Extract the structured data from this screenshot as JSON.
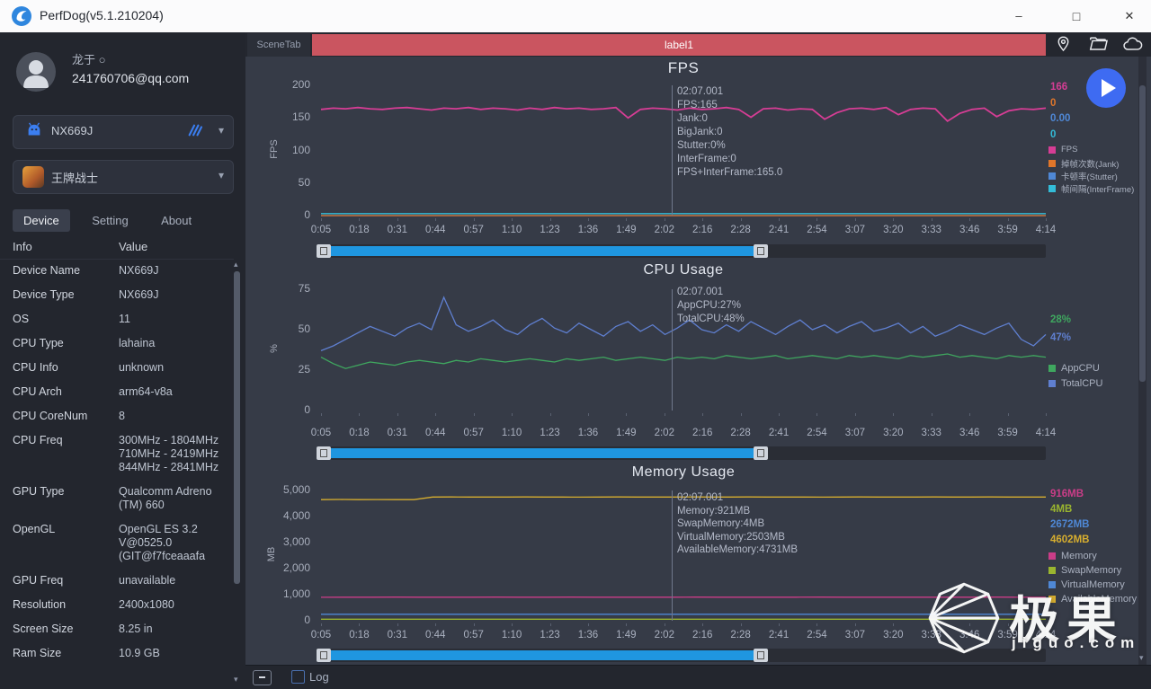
{
  "window": {
    "title": "PerfDog(v5.1.210204)"
  },
  "icons": {
    "minimize": "–",
    "maximize": "□",
    "close": "✕",
    "caret_down": "▾",
    "scroll_up": "▴",
    "scroll_down": "▾"
  },
  "sidebar": {
    "user": {
      "name": "龙于 ○",
      "email": "241760706@qq.com"
    },
    "device_select": {
      "value": "NX669J"
    },
    "app_select": {
      "value": "王牌战士"
    },
    "tabs": [
      {
        "label": "Device",
        "active": true
      },
      {
        "label": "Setting",
        "active": false
      },
      {
        "label": "About",
        "active": false
      }
    ],
    "table": {
      "headers": [
        "Info",
        "Value"
      ],
      "rows": [
        [
          "Device Name",
          "NX669J"
        ],
        [
          "Device Type",
          "NX669J"
        ],
        [
          "OS",
          "11"
        ],
        [
          "CPU Type",
          "lahaina"
        ],
        [
          "CPU Info",
          "unknown"
        ],
        [
          "CPU Arch",
          "arm64-v8a"
        ],
        [
          "CPU CoreNum",
          "8"
        ],
        [
          "CPU Freq",
          "300MHz - 1804MHz\n710MHz - 2419MHz\n844MHz - 2841MHz"
        ],
        [
          "GPU Type",
          "Qualcomm Adreno (TM) 660"
        ],
        [
          "OpenGL",
          "OpenGL ES 3.2 V@0525.0 (GIT@f7fceaaafa"
        ],
        [
          "GPU Freq",
          "unavailable"
        ],
        [
          "Resolution",
          "2400x1080"
        ],
        [
          "Screen Size",
          "8.25 in"
        ],
        [
          "Ram Size",
          "10.9 GB"
        ]
      ]
    }
  },
  "main": {
    "scene_tab": "SceneTab",
    "banner_label": "label1",
    "log_label": "Log"
  },
  "watermark": {
    "logo_text": "极果",
    "site": "jiguo.com"
  },
  "chart_data": [
    {
      "type": "line",
      "title": "FPS",
      "ylabel": "FPS",
      "ylim": [
        0,
        200
      ],
      "yticks": [
        "0",
        "50",
        "100",
        "150",
        "200"
      ],
      "x_ticks": [
        "0:05",
        "0:18",
        "0:31",
        "0:44",
        "0:57",
        "1:10",
        "1:23",
        "1:36",
        "1:49",
        "2:02",
        "2:16",
        "2:28",
        "2:41",
        "2:54",
        "3:07",
        "3:20",
        "3:33",
        "3:46",
        "3:59",
        "4:14"
      ],
      "grid": false,
      "legend_position": "right",
      "tooltip": [
        "02:07.001",
        "FPS:165",
        "Jank:0",
        "BigJank:0",
        "Stutter:0%",
        "InterFrame:0",
        "FPS+InterFrame:165.0"
      ],
      "series": [
        {
          "name": "FPS",
          "color": "#d63d95",
          "current": "166",
          "values": [
            163,
            165,
            164,
            166,
            164,
            163,
            165,
            166,
            164,
            162,
            165,
            164,
            166,
            163,
            165,
            164,
            162,
            165,
            163,
            166,
            164,
            165,
            163,
            164,
            166,
            150,
            163,
            165,
            164,
            162,
            165,
            163,
            164,
            166,
            163,
            151,
            164,
            165,
            162,
            164,
            163,
            148,
            158,
            164,
            165,
            163,
            166,
            155,
            163,
            165,
            164,
            145,
            157,
            163,
            165,
            152,
            161,
            164,
            163,
            165
          ]
        },
        {
          "name": "掉帧次数(Jank)",
          "color": "#e0762a",
          "current": "0",
          "values": [
            0,
            0
          ]
        },
        {
          "name": "卡顿率(Stutter)",
          "color": "#4f88d6",
          "current": "0.00",
          "values": [
            0,
            0
          ]
        },
        {
          "name": "帧间隔(InterFrame)",
          "color": "#33bcd8",
          "current": "0",
          "values": [
            3,
            3
          ]
        }
      ]
    },
    {
      "type": "line",
      "title": "CPU Usage",
      "ylabel": "%",
      "ylim": [
        0,
        75
      ],
      "yticks": [
        "0",
        "25",
        "50",
        "75"
      ],
      "x_ticks": [
        "0:05",
        "0:18",
        "0:31",
        "0:44",
        "0:57",
        "1:10",
        "1:23",
        "1:36",
        "1:49",
        "2:02",
        "2:16",
        "2:28",
        "2:41",
        "2:54",
        "3:07",
        "3:20",
        "3:33",
        "3:46",
        "3:59",
        "4:14"
      ],
      "grid": false,
      "legend_position": "right",
      "tooltip": [
        "02:07.001",
        "AppCPU:27%",
        "TotalCPU:48%"
      ],
      "series": [
        {
          "name": "AppCPU",
          "color": "#3fa75f",
          "current": "28%",
          "values": [
            33,
            29,
            26,
            28,
            30,
            29,
            28,
            30,
            31,
            30,
            29,
            31,
            30,
            32,
            31,
            30,
            31,
            32,
            31,
            30,
            32,
            31,
            32,
            33,
            31,
            32,
            33,
            32,
            31,
            33,
            32,
            33,
            32,
            34,
            33,
            32,
            33,
            34,
            32,
            33,
            34,
            33,
            32,
            34,
            33,
            34,
            33,
            32,
            34,
            33,
            34,
            35,
            33,
            34,
            33,
            32,
            34,
            33,
            34,
            33
          ]
        },
        {
          "name": "TotalCPU",
          "color": "#5f7fd0",
          "current": "47%",
          "values": [
            37,
            40,
            44,
            48,
            52,
            49,
            46,
            51,
            54,
            50,
            70,
            53,
            49,
            52,
            56,
            50,
            47,
            53,
            57,
            51,
            48,
            54,
            50,
            46,
            52,
            55,
            49,
            53,
            47,
            51,
            56,
            50,
            48,
            53,
            49,
            55,
            51,
            47,
            52,
            56,
            50,
            53,
            48,
            52,
            55,
            49,
            51,
            54,
            48,
            52,
            46,
            49,
            53,
            50,
            47,
            51,
            54,
            44,
            40,
            47
          ]
        }
      ]
    },
    {
      "type": "line",
      "title": "Memory Usage",
      "ylabel": "MB",
      "ylim": [
        0,
        5000
      ],
      "yticks": [
        "0",
        "1,000",
        "2,000",
        "3,000",
        "4,000",
        "5,000"
      ],
      "x_ticks": [
        "0:05",
        "0:18",
        "0:31",
        "0:44",
        "0:57",
        "1:10",
        "1:23",
        "1:36",
        "1:49",
        "2:02",
        "2:16",
        "2:28",
        "2:41",
        "2:54",
        "3:07",
        "3:20",
        "3:33",
        "3:46",
        "3:59",
        "4:14"
      ],
      "grid": false,
      "legend_position": "right",
      "tooltip": [
        "02:07.001",
        "Memory:921MB",
        "SwapMemory:4MB",
        "VirtualMemory:2503MB",
        "AvailableMemory:4731MB"
      ],
      "series": [
        {
          "name": "Memory",
          "color": "#cb3d88",
          "current": "916MB",
          "values": [
            900,
            905,
            903,
            906,
            904,
            902,
            905,
            907,
            904,
            903,
            906,
            904,
            902,
            905,
            903,
            906,
            904,
            905,
            903,
            904,
            906,
            903,
            905,
            904,
            902,
            905,
            903,
            906,
            904,
            903
          ]
        },
        {
          "name": "SwapMemory",
          "color": "#9ab52f",
          "current": "4MB",
          "values": [
            60,
            60
          ]
        },
        {
          "name": "VirtualMemory",
          "color": "#4f88d6",
          "current": "2672MB",
          "values": [
            250,
            250
          ]
        },
        {
          "name": "AvailableMemory",
          "color": "#d7ae2f",
          "current": "4602MB",
          "values": [
            4650,
            4655,
            4650,
            4652,
            4648,
            4650,
            4748,
            4752,
            4750,
            4748,
            4750,
            4752,
            4750,
            4748,
            4746,
            4750,
            4752,
            4750,
            4748,
            4750,
            4752,
            4748,
            4750,
            4752,
            4750,
            4748,
            4750,
            4746,
            4750,
            4752,
            4750,
            4748,
            4750,
            4752,
            4750,
            4748,
            4752,
            4750,
            4748,
            4750
          ]
        }
      ]
    }
  ]
}
